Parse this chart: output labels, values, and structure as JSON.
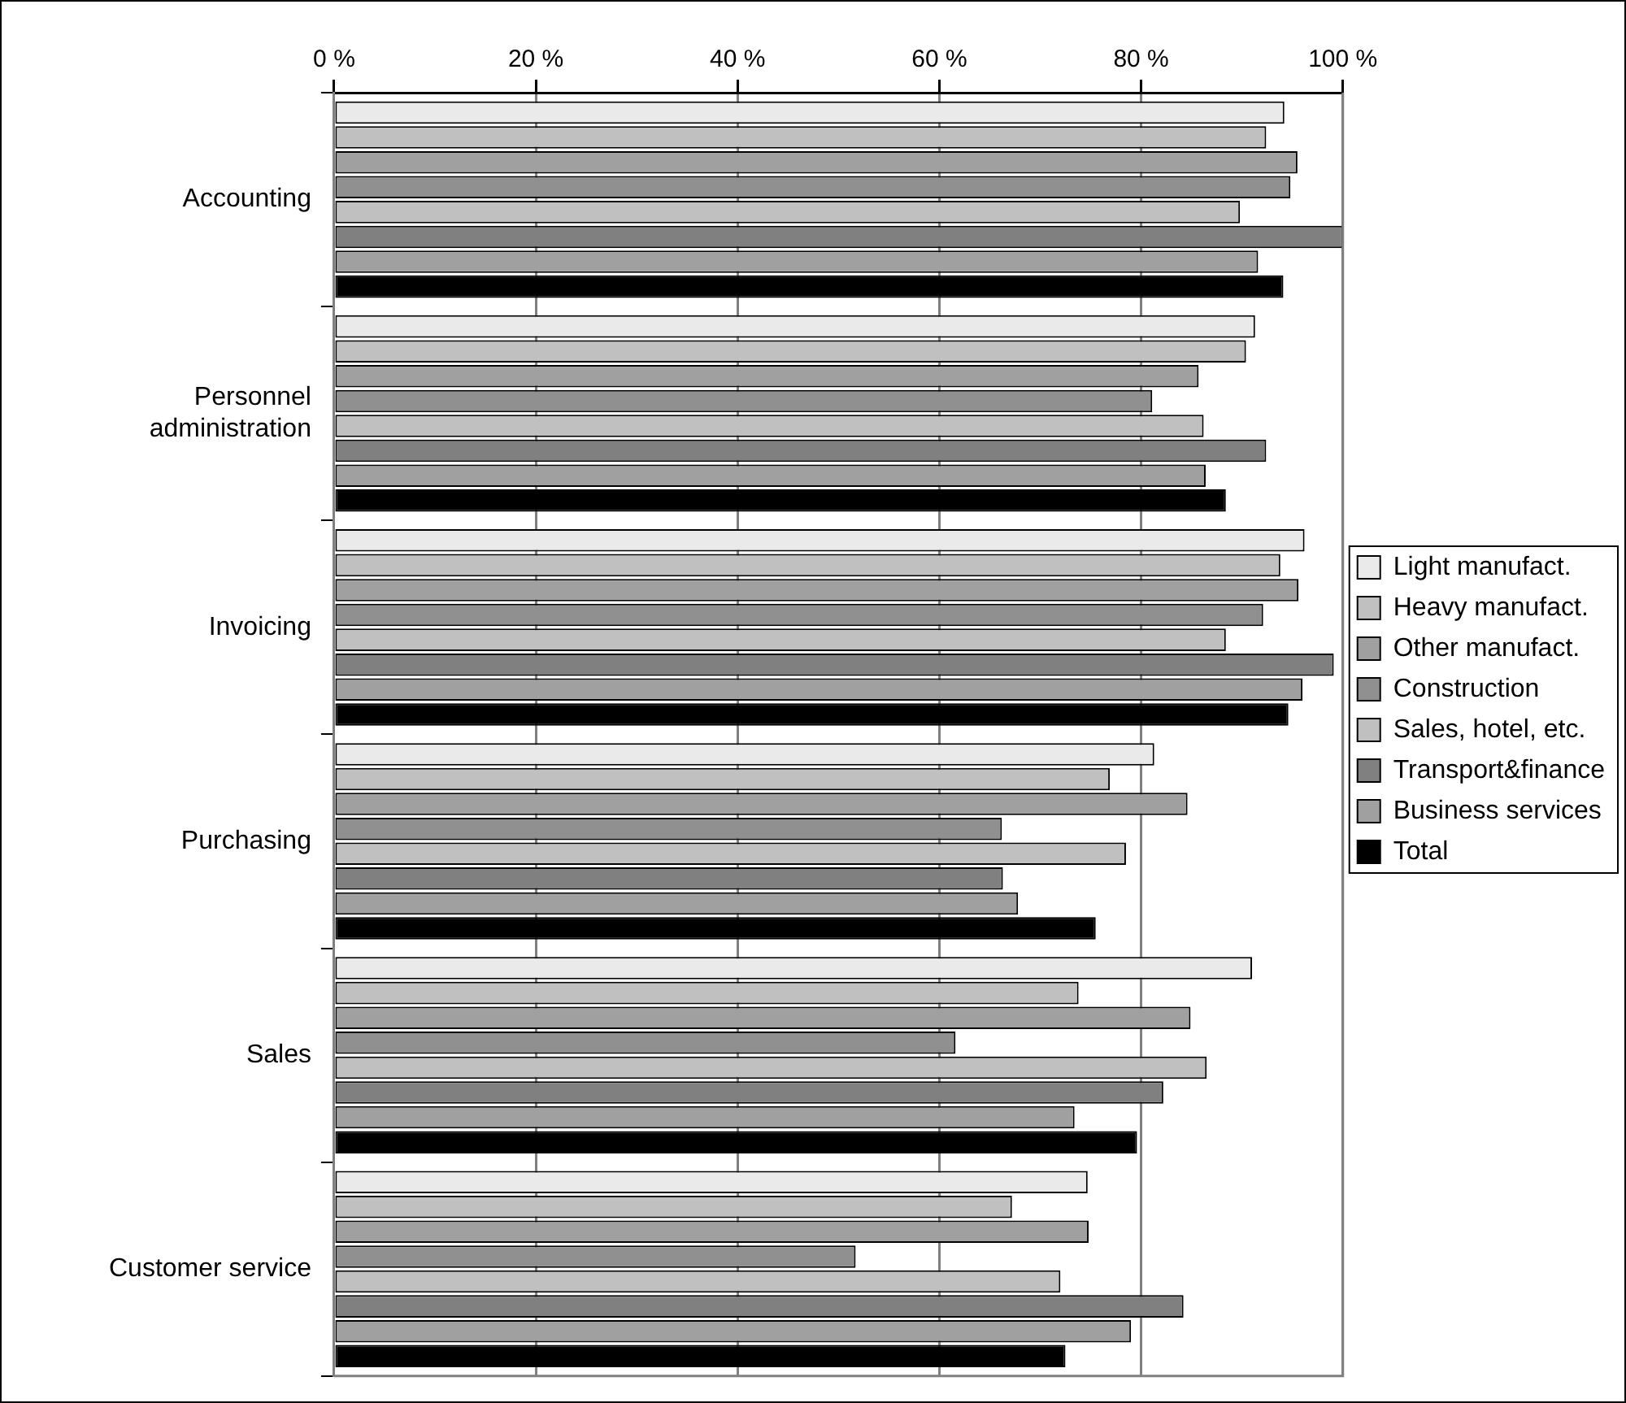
{
  "chart_data": {
    "type": "bar",
    "orientation": "horizontal",
    "categories": [
      "Accounting",
      "Personnel administration",
      "Invoicing",
      "Purchasing",
      "Sales",
      "Customer service"
    ],
    "series": [
      {
        "name": "Light manufact.",
        "color": "#eaeaea",
        "values": [
          94.2,
          91.3,
          96.2,
          81.3,
          91.0,
          74.7
        ]
      },
      {
        "name": "Heavy manufact.",
        "color": "#c0c0c0",
        "values": [
          92.4,
          90.4,
          93.8,
          76.9,
          73.8,
          67.2
        ]
      },
      {
        "name": "Other manufact.",
        "color": "#a0a0a0",
        "values": [
          95.5,
          85.7,
          95.6,
          84.6,
          84.9,
          74.8
        ]
      },
      {
        "name": "Construction",
        "color": "#909090",
        "values": [
          94.8,
          81.1,
          92.1,
          66.2,
          61.6,
          51.7
        ]
      },
      {
        "name": "Sales, hotel, etc.",
        "color": "#c0c0c0",
        "values": [
          89.8,
          86.2,
          88.4,
          78.5,
          86.5,
          72.0
        ]
      },
      {
        "name": "Transport&finance",
        "color": "#808080",
        "values": [
          100,
          92.4,
          99.1,
          66.3,
          82.2,
          84.2
        ]
      },
      {
        "name": "Business services",
        "color": "#a0a0a0",
        "values": [
          91.6,
          86.4,
          96.0,
          67.8,
          73.4,
          79.0
        ]
      },
      {
        "name": "Total",
        "color": "#000000",
        "values": [
          94.1,
          88.4,
          94.6,
          75.5,
          79.6,
          72.5
        ]
      }
    ],
    "xlim": [
      0,
      100
    ],
    "xticks": [
      {
        "value": 0,
        "label": "0 %"
      },
      {
        "value": 20,
        "label": "20 %"
      },
      {
        "value": 40,
        "label": "40 %"
      },
      {
        "value": 60,
        "label": "60 %"
      },
      {
        "value": 80,
        "label": "80 %"
      },
      {
        "value": 100,
        "label": "100 %"
      }
    ],
    "grid": "x",
    "legend": "right"
  }
}
